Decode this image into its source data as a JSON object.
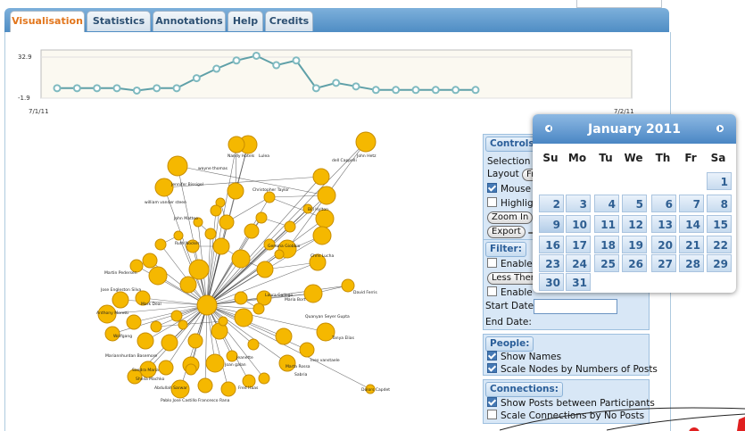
{
  "tabs": [
    {
      "label": "Visualisation",
      "active": true
    },
    {
      "label": "Statistics",
      "active": false
    },
    {
      "label": "Annotations",
      "active": false
    },
    {
      "label": "Help",
      "active": false
    },
    {
      "label": "Credits",
      "active": false
    }
  ],
  "timeline": {
    "y_max": "32.9",
    "y_min": "-1.9",
    "x_start": "7/1/11",
    "x_end": "7/2/11",
    "values": [
      0.5,
      0.5,
      0.5,
      0.5,
      -1.5,
      0.5,
      0.5,
      9,
      17,
      24,
      28,
      20,
      24,
      0.5,
      5,
      2,
      -1,
      -1,
      -1,
      -1,
      -1,
      -1
    ],
    "line_color": "#5fa0a8",
    "point_color": "#7fbac0"
  },
  "graph": {
    "node_color": "#f5b800",
    "node_stroke": "#c78d00",
    "edge_color": "#333333",
    "labels": [
      "Nandy Hotels",
      "Lulea",
      "John Hetz",
      "dell Cappelli",
      "wayne thomas",
      "Jennifer Bissigel",
      "Christopher Taylor",
      "william vander steen",
      "John Matteo",
      "Bill Hylton",
      "Ruth Nocker",
      "Gemma Giobbio",
      "Chris Lucha",
      "Martin Pedersen",
      "Jose Engleston Silva",
      "Anthony Moretti",
      "Mark Deal",
      "Wolfgang",
      "Mariannhurdan Basemore",
      "Sandra Maria",
      "Sheila Machko",
      "Abdullah Sarwar",
      "Pablo Jose Castillo",
      "Francesco Rana",
      "Fred Haas",
      "Marta Rossa",
      "Sabria",
      "Ines vanstaele",
      "Tanya Elias",
      "David Ferris",
      "Dolors Capdet",
      "Laura Gallego",
      "Maria Bort",
      "Quanyan Seyer Gupta",
      "Jeanette",
      "Joan galan"
    ]
  },
  "controls": {
    "title": "Controls:",
    "selection_label": "Selection",
    "layout_label": "Layout",
    "layout_value": "Fr",
    "mouse_label": "Mouse",
    "mouse_checked": true,
    "highlight_label": "Highlig",
    "highlight_checked": false,
    "zoom_in": "Zoom In",
    "export": "Export"
  },
  "filter": {
    "title": "Filter:",
    "enable1": "Enable",
    "less_than": "Less Then",
    "enable2": "Enable",
    "start_date": "Start Date:",
    "end_date": "End Date:"
  },
  "people": {
    "title": "People:",
    "show_names": "Show Names",
    "scale_nodes": "Scale Nodes by Numbers of Posts"
  },
  "connections": {
    "title": "Connections:",
    "show_posts": "Show Posts between Participants",
    "scale_connections": "Scale Connections by No Posts"
  },
  "calendar": {
    "title": "January 2011",
    "days_of_week": [
      "Su",
      "Mo",
      "Tu",
      "We",
      "Th",
      "Fr",
      "Sa"
    ],
    "weeks": [
      [
        "",
        "",
        "",
        "",
        "",
        "",
        "1"
      ],
      [
        "2",
        "3",
        "4",
        "5",
        "6",
        "7",
        "8"
      ],
      [
        "9",
        "10",
        "11",
        "12",
        "13",
        "14",
        "15"
      ],
      [
        "16",
        "17",
        "18",
        "19",
        "20",
        "21",
        "22"
      ],
      [
        "23",
        "24",
        "25",
        "26",
        "27",
        "28",
        "29"
      ],
      [
        "30",
        "31",
        "",
        "",
        "",
        "",
        ""
      ]
    ],
    "highlight_day": "9"
  }
}
